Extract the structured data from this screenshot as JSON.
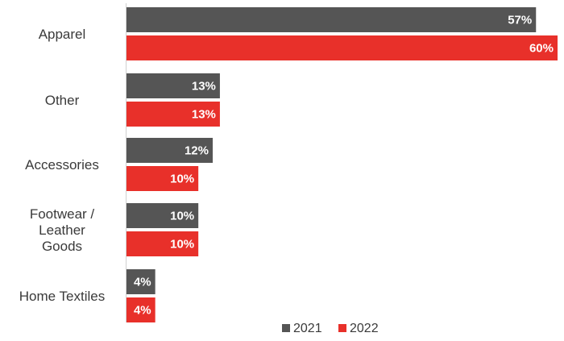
{
  "chart_data": {
    "type": "bar",
    "orientation": "horizontal",
    "categories": [
      [
        "Apparel"
      ],
      [
        "Other"
      ],
      [
        "Accessories"
      ],
      [
        "Footwear /",
        "Leather",
        "Goods"
      ],
      [
        "Home Textiles"
      ]
    ],
    "series": [
      {
        "name": "2021",
        "color": "#555555",
        "values": [
          57,
          13,
          12,
          10,
          4
        ],
        "labels": [
          "57%",
          "13%",
          "12%",
          "10%",
          "4%"
        ]
      },
      {
        "name": "2022",
        "color": "#e8302a",
        "values": [
          60,
          13,
          10,
          10,
          4
        ],
        "labels": [
          "60%",
          "13%",
          "10%",
          "10%",
          "4%"
        ]
      }
    ],
    "xlim": [
      0,
      60
    ],
    "grid": false,
    "legend_position": "bottom"
  }
}
